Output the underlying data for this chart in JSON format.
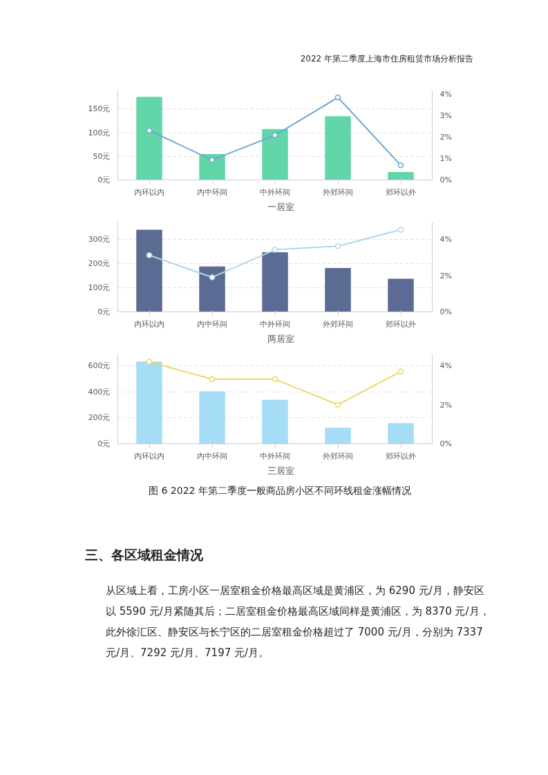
{
  "chart_data": [
    {
      "type": "other",
      "annotations": [
        "2022 年第二季度上海市住房租赁市场分析报告"
      ]
    },
    {
      "type": "bar",
      "categories": [
        "内环以内",
        "内中环间",
        "中外环间",
        "外郊环间",
        "郊环以外"
      ],
      "series": [
        {
          "name": "一居室",
          "color": "#62d6a9",
          "values": [
            175,
            54,
            107,
            134,
            16
          ]
        },
        {
          "type": "line",
          "axis": "y2",
          "color": "#6aa8d2",
          "values": [
            2.3,
            0.93,
            2.08,
            3.84,
            0.68
          ]
        }
      ],
      "ylim": [
        0,
        190
      ],
      "yticks": [
        {
          "value": 0,
          "label": "0元"
        },
        {
          "value": 50,
          "label": "50元"
        },
        {
          "value": 100,
          "label": "100元"
        },
        {
          "value": 150,
          "label": "150元"
        }
      ],
      "y2lim": [
        0,
        4.18
      ],
      "y2ticks": [
        {
          "value": 0,
          "label": "0%"
        },
        {
          "value": 1,
          "label": "1%"
        },
        {
          "value": 2,
          "label": "2%"
        },
        {
          "value": 3,
          "label": "3%"
        },
        {
          "value": 4,
          "label": "4%"
        }
      ],
      "grid": "y",
      "legend": "bottom",
      "marker": "circle"
    },
    {
      "type": "bar",
      "categories": [
        "内环以内",
        "内中环间",
        "中外环间",
        "外郊环间",
        "郊环以外"
      ],
      "series": [
        {
          "name": "两居室",
          "color": "#5b6b93",
          "values": [
            337,
            186,
            244,
            179,
            135
          ]
        },
        {
          "type": "line",
          "axis": "y2",
          "color": "#add8ea",
          "values": [
            3.13,
            1.91,
            3.43,
            3.63,
            4.54
          ]
        }
      ],
      "ylim": [
        0,
        370
      ],
      "yticks": [
        {
          "value": 0,
          "label": "0元"
        },
        {
          "value": 100,
          "label": "100元"
        },
        {
          "value": 200,
          "label": "200元"
        },
        {
          "value": 300,
          "label": "300元"
        }
      ],
      "y2lim": [
        0,
        4.96
      ],
      "y2ticks": [
        {
          "value": 0,
          "label": "0%"
        },
        {
          "value": 2,
          "label": "2%"
        },
        {
          "value": 4,
          "label": "4%"
        }
      ],
      "grid": "y",
      "legend": "bottom",
      "marker": "circle"
    },
    {
      "type": "bar",
      "categories": [
        "内环以内",
        "内中环间",
        "中外环间",
        "外郊环间",
        "郊环以外"
      ],
      "series": [
        {
          "name": "三居室",
          "color": "#a5dcf6",
          "values": [
            628,
            400,
            335,
            121,
            156
          ]
        },
        {
          "type": "line",
          "axis": "y2",
          "color": "#ecd863",
          "values": [
            4.22,
            3.32,
            3.32,
            2.01,
            3.72
          ]
        }
      ],
      "ylim": [
        0,
        689
      ],
      "yticks": [
        {
          "value": 0,
          "label": "0元"
        },
        {
          "value": 200,
          "label": "200元"
        },
        {
          "value": 400,
          "label": "400元"
        },
        {
          "value": 600,
          "label": "600元"
        }
      ],
      "y2lim": [
        0,
        4.62
      ],
      "y2ticks": [
        {
          "value": 0,
          "label": "0%"
        },
        {
          "value": 2,
          "label": "2%"
        },
        {
          "value": 4,
          "label": "4%"
        }
      ],
      "grid": "y",
      "legend": "bottom",
      "marker": "circle"
    },
    {
      "type": "other",
      "annotations": [
        "图 6 2022 年第二季度一般商品房小区不同环线租金涨幅情况",
        "三、各区域租金情况",
        "从区域上看，工房小区一居室租金价格最高区域是黄浦区，为 6290 元/月，静安区以 5590 元/月紧随其后；二居室租金价格最高区域同样是黄浦区，为 8370 元/月，此外徐汇区、静安区与长宁区的二居室租金价格超过了 7000 元/月，分别为 7337 元/月、7292 元/月、7197 元/月。"
      ]
    }
  ]
}
